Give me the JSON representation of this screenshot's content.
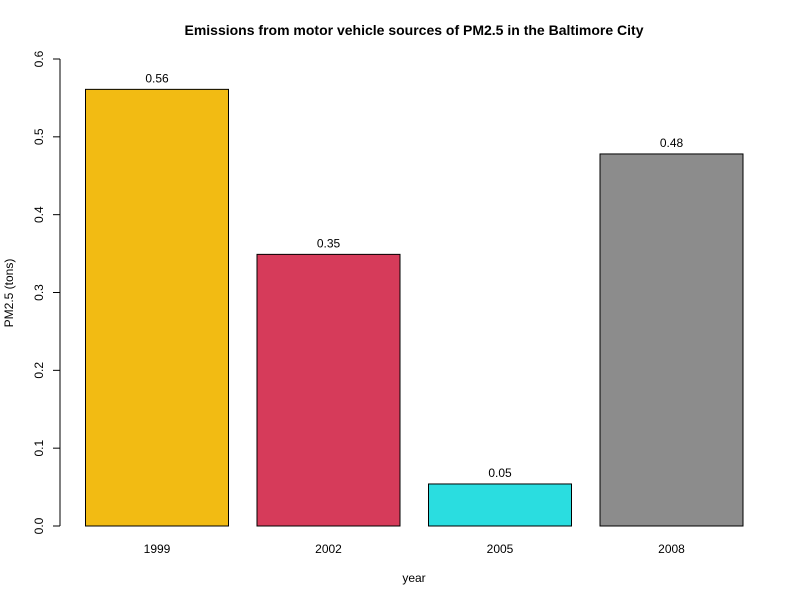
{
  "chart_data": {
    "type": "bar",
    "title": "Emissions from motor vehicle sources of PM2.5 in the Baltimore City",
    "xlabel": "year",
    "ylabel": "PM2.5 (tons)",
    "categories": [
      "1999",
      "2002",
      "2005",
      "2008"
    ],
    "values": [
      0.561,
      0.349,
      0.054,
      0.478
    ],
    "data_labels": [
      "0.56",
      "0.35",
      "0.05",
      "0.48"
    ],
    "colors": [
      "#F2BB13",
      "#D63B5A",
      "#2ADDE0",
      "#8C8C8C"
    ],
    "ylim": [
      0,
      0.6
    ],
    "yticks": [
      "0.0",
      "0.1",
      "0.2",
      "0.3",
      "0.4",
      "0.5",
      "0.6"
    ],
    "grid": false,
    "legend": "none"
  }
}
